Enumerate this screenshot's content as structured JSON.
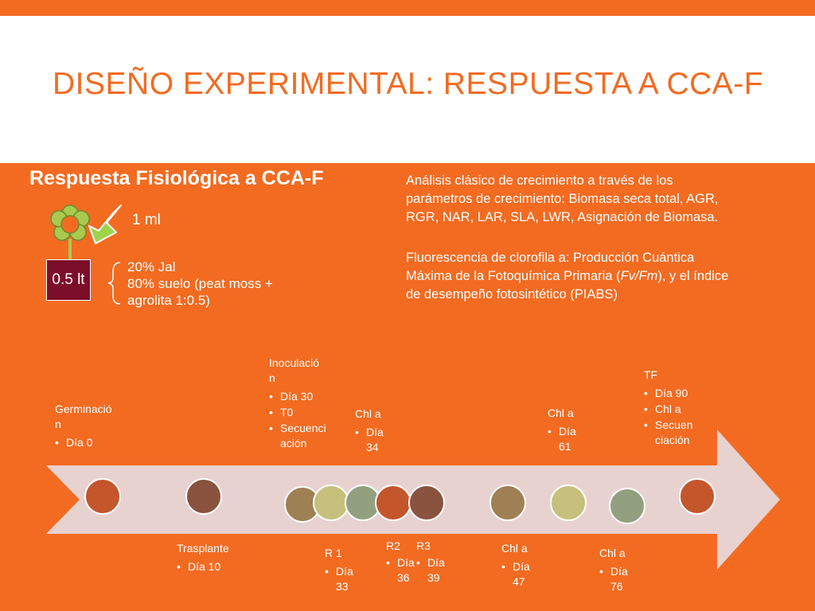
{
  "title": "DISEÑO EXPERIMENTAL: RESPUESTA A CCA-F",
  "subtitle": "Respuesta Fisiológica a CCA-F",
  "volume_label": "1 ml",
  "pot_label": "0.5 lt",
  "soil_lines": [
    "20% Jal",
    "80% suelo (peat moss +",
    "agrolita 1:0.5)"
  ],
  "growth_analysis_lines": [
    "Análisis clásico de crecimiento a través de los",
    "parámetros de crecimiento: Biomasa seca total, AGR,",
    "RGR, NAR, LAR, SLA, LWR, Asignación de Biomasa."
  ],
  "fluorescence": {
    "line1": "Fluorescencia de clorofila a: Producción Cuántica",
    "line2_before": "Máxima de la Fotoquímica Primaria (",
    "line2_italic": "Fv/Fm",
    "line2_after": "), y el índice",
    "line3": "de desempeño fotosintético (PIABS)"
  },
  "colors": {
    "background": "#f26b21",
    "header": "#ffffff",
    "title": "#f26b21",
    "timeline_arrow": "#e8d2cf",
    "pot": "#7d0e2a",
    "flower": "#a9c94f",
    "dropper_arrow": "#9ed34a"
  },
  "timeline": {
    "events_above": [
      {
        "title": "Germinació",
        "title2": "n",
        "items": [
          "Día 0"
        ]
      },
      {
        "title": "Inoculació",
        "title2": "n",
        "items": [
          "Día 30",
          "T0",
          "Secuenci",
          "ación"
        ]
      },
      {
        "title": "Chl a",
        "items": [
          "Día",
          "34"
        ]
      },
      {
        "title": "Chl a",
        "items": [
          "Día",
          "61"
        ]
      },
      {
        "title": "TF",
        "items": [
          "Día 90",
          "Chl a",
          "Secuen",
          "ciación"
        ]
      }
    ],
    "events_below": [
      {
        "title": "Trasplante",
        "items": [
          "Día 10"
        ]
      },
      {
        "title": "R 1",
        "items": [
          "Día",
          "33"
        ]
      },
      {
        "title": "R2",
        "items": [
          "Día",
          "36"
        ]
      },
      {
        "title": "R3",
        "items": [
          "Día",
          "39"
        ]
      },
      {
        "title": "Chl a",
        "items": [
          "Día",
          "47"
        ]
      },
      {
        "title": "Chl a",
        "items": [
          "Día",
          "76"
        ]
      }
    ],
    "markers": [
      {
        "color": "#c4562c"
      },
      {
        "color": "#8a533f"
      },
      {
        "color": "#9e8054"
      },
      {
        "color": "#c6c07c"
      },
      {
        "color": "#93a07f"
      },
      {
        "color": "#c4562c"
      },
      {
        "color": "#8a533f"
      },
      {
        "color": "#9e8054"
      },
      {
        "color": "#c6c07c"
      },
      {
        "color": "#93a07f"
      },
      {
        "color": "#c4562c"
      }
    ]
  }
}
